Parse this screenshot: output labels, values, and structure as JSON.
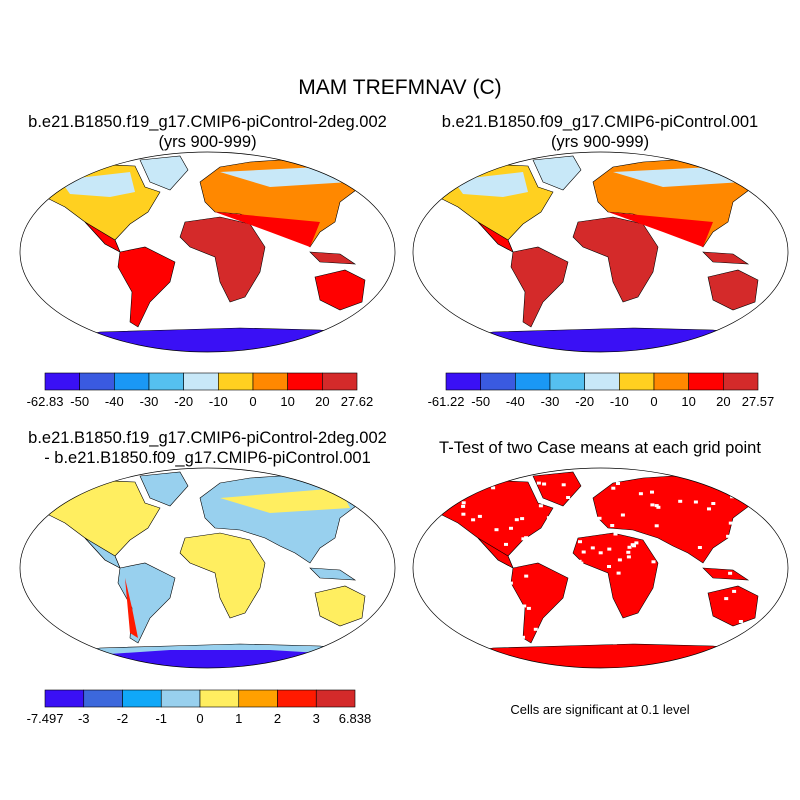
{
  "title": "MAM TREFMNAV (C)",
  "panels": [
    {
      "title_line1": "b.e21.B1850.f19_g17.CMIP6-piControl-2deg.002",
      "title_line2": "(yrs 900-999)",
      "colorbar": {
        "labels": [
          "-62.83",
          "-50",
          "-40",
          "-30",
          "-20",
          "-10",
          "0",
          "10",
          "20",
          "27.62"
        ],
        "colors": [
          "#3a10f5",
          "#3a5ae0",
          "#1a98f5",
          "#55c0f0",
          "#c8e8f8",
          "#ffd020",
          "#ff8800",
          "#ff0000",
          "#d42a2a"
        ]
      }
    },
    {
      "title_line1": "b.e21.B1850.f09_g17.CMIP6-piControl.001",
      "title_line2": "(yrs 900-999)",
      "colorbar": {
        "labels": [
          "-61.22",
          "-50",
          "-40",
          "-30",
          "-20",
          "-10",
          "0",
          "10",
          "20",
          "27.57"
        ],
        "colors": [
          "#3a10f5",
          "#3a5ae0",
          "#1a98f5",
          "#55c0f0",
          "#c8e8f8",
          "#ffd020",
          "#ff8800",
          "#ff0000",
          "#d42a2a"
        ]
      }
    },
    {
      "title_line1": "b.e21.B1850.f19_g17.CMIP6-piControl-2deg.002",
      "title_line2": "- b.e21.B1850.f09_g17.CMIP6-piControl.001",
      "colorbar": {
        "labels": [
          "-7.497",
          "-3",
          "-2",
          "-1",
          "0",
          "1",
          "2",
          "3",
          "6.838"
        ],
        "colors": [
          "#3a10f5",
          "#3c68dc",
          "#10a8f8",
          "#98d0ee",
          "#ffee60",
          "#ffa000",
          "#ff1a00",
          "#d42a2a"
        ]
      }
    },
    {
      "title_line1": "T-Test of two Case means at each grid point",
      "note": "Cells are significant at 0.1 level",
      "significant_color": "#ff0000"
    }
  ]
}
